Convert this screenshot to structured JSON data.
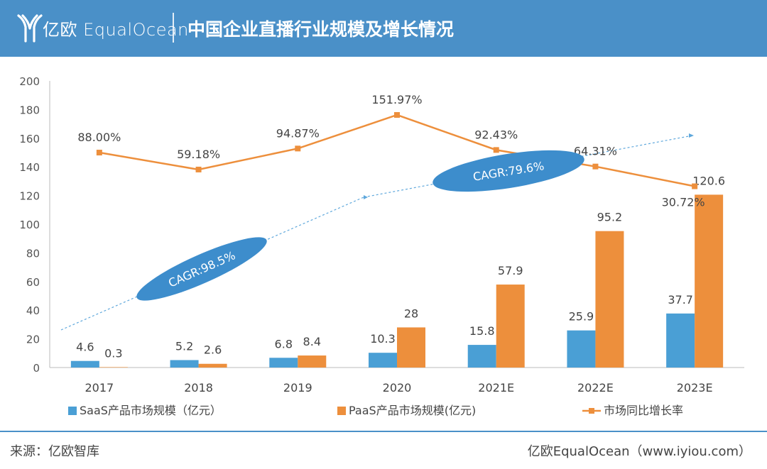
{
  "header": {
    "brand": "亿欧 EqualOcean",
    "title": "中国企业直播行业规模及增长情况"
  },
  "footer": {
    "source": "来源：亿欧智库",
    "credit": "亿欧EqualOcean（www.iyiou.com）"
  },
  "colors": {
    "header_bg": "#4a90c8",
    "saas": "#4a9fd5",
    "paas": "#ed8f3c",
    "growth": "#ed8f3c",
    "cagr_ellipse": "#3d8dcc",
    "cagr_line": "#5fa8dc"
  },
  "chart_data": {
    "type": "bar",
    "categories": [
      "2017",
      "2018",
      "2019",
      "2020",
      "2021E",
      "2022E",
      "2023E"
    ],
    "series": [
      {
        "name": "SaaS产品市场规模（亿元）",
        "type": "bar",
        "values": [
          4.6,
          5.2,
          6.8,
          10.3,
          15.8,
          25.9,
          37.7
        ],
        "labels": [
          "4.6",
          "5.2",
          "6.8",
          "10.3",
          "15.8",
          "25.9",
          "37.7"
        ]
      },
      {
        "name": "PaaS产品市场规模(亿元)",
        "type": "bar",
        "values": [
          0.3,
          2.6,
          8.4,
          28,
          57.9,
          95.2,
          120.6
        ],
        "labels": [
          "0.3",
          "2.6",
          "8.4",
          "28",
          "57.9",
          "95.2",
          "120.6"
        ]
      },
      {
        "name": "市场同比增长率",
        "type": "line",
        "values": [
          88.0,
          59.18,
          94.87,
          151.97,
          92.43,
          64.31,
          30.72
        ],
        "labels": [
          "88.00%",
          "59.18%",
          "94.87%",
          "151.97%",
          "92.43%",
          "64.31%",
          "30.72%"
        ]
      }
    ],
    "yticks": [
      "0",
      "20",
      "40",
      "60",
      "80",
      "100",
      "120",
      "140",
      "160",
      "180",
      "200"
    ],
    "ylim": [
      0,
      200
    ],
    "annotations": [
      "CAGR:98.5%",
      "CAGR:79.6%"
    ],
    "legend_position": "bottom",
    "grid": false
  }
}
